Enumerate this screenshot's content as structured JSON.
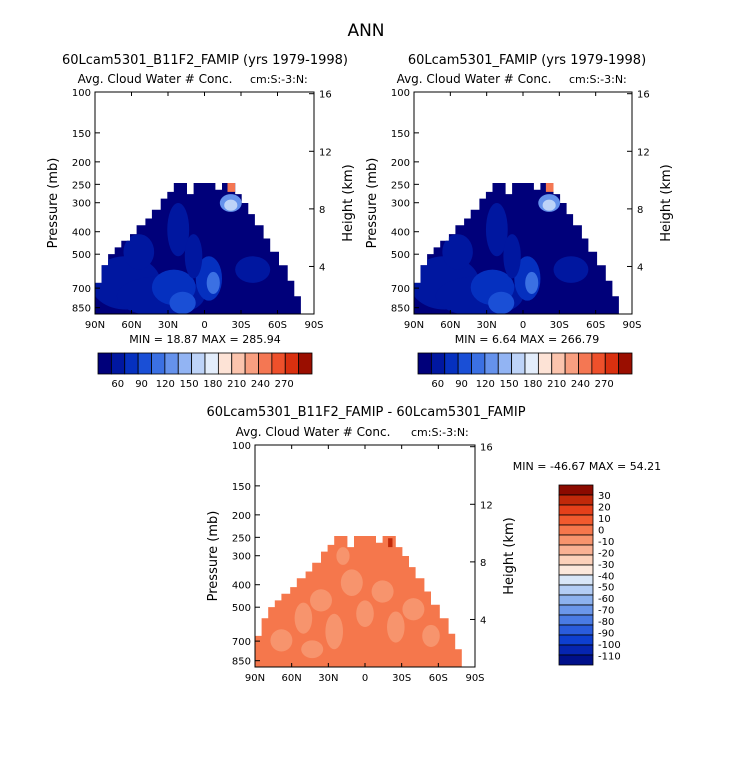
{
  "figure_title": "ANN",
  "chart_data": [
    {
      "type": "heatmap",
      "title": "60Lcam5301_B11F2_FAMIP (yrs 1979-1998)",
      "subtitle": "Avg. Cloud Water # Conc.",
      "corner_label": "cm:S:-3:N:",
      "ylabel": "Pressure (mb)",
      "ylabel_right": "Height (km)",
      "x_ticks": [
        "90N",
        "60N",
        "30N",
        "0",
        "30S",
        "60S",
        "90S"
      ],
      "y_ticks": [
        "100",
        "150",
        "200",
        "250",
        "300",
        "400",
        "500",
        "700",
        "850"
      ],
      "y_ticks_right": [
        "16",
        "12",
        "8",
        "4"
      ],
      "stats": "MIN = 18.87   MAX = 285.94",
      "colorbar": {
        "labels": [
          "60",
          "90",
          "120",
          "150",
          "180",
          "210",
          "240",
          "270"
        ],
        "colors": [
          "#00007a",
          "#0017a0",
          "#0530bf",
          "#1a4fd6",
          "#3b70e3",
          "#6592ec",
          "#92b4f3",
          "#bdd3f8",
          "#e3edfb",
          "#fde3d6",
          "#fbc4ad",
          "#f89f80",
          "#f47753",
          "#ee502b",
          "#d9300f",
          "#9a0e00"
        ]
      }
    },
    {
      "type": "heatmap",
      "title": "60Lcam5301_FAMIP (yrs 1979-1998)",
      "subtitle": "Avg. Cloud Water # Conc.",
      "corner_label": "cm:S:-3:N:",
      "ylabel": "Pressure (mb)",
      "ylabel_right": "Height (km)",
      "x_ticks": [
        "90N",
        "60N",
        "30N",
        "0",
        "30S",
        "60S",
        "90S"
      ],
      "y_ticks": [
        "100",
        "150",
        "200",
        "250",
        "300",
        "400",
        "500",
        "700",
        "850"
      ],
      "y_ticks_right": [
        "16",
        "12",
        "8",
        "4"
      ],
      "stats": "MIN = 6.64   MAX = 266.79",
      "colorbar": {
        "labels": [
          "60",
          "90",
          "120",
          "150",
          "180",
          "210",
          "240",
          "270"
        ],
        "colors": [
          "#00007a",
          "#0017a0",
          "#0530bf",
          "#1a4fd6",
          "#3b70e3",
          "#6592ec",
          "#92b4f3",
          "#bdd3f8",
          "#e3edfb",
          "#fde3d6",
          "#fbc4ad",
          "#f89f80",
          "#f47753",
          "#ee502b",
          "#d9300f",
          "#9a0e00"
        ]
      }
    },
    {
      "type": "heatmap",
      "title": "60Lcam5301_B11F2_FAMIP - 60Lcam5301_FAMIP",
      "subtitle": "Avg. Cloud Water # Conc.",
      "corner_label": "cm:S:-3:N:",
      "ylabel": "Pressure (mb)",
      "ylabel_right": "Height (km)",
      "x_ticks": [
        "90N",
        "60N",
        "30N",
        "0",
        "30S",
        "60S",
        "90S"
      ],
      "y_ticks": [
        "100",
        "150",
        "200",
        "250",
        "300",
        "400",
        "500",
        "700",
        "850"
      ],
      "y_ticks_right": [
        "16",
        "12",
        "8",
        "4"
      ],
      "stats": "MIN = -46.67   MAX = 54.21",
      "colorbar": {
        "labels": [
          "30",
          "20",
          "10",
          "0",
          "-10",
          "-20",
          "-30",
          "-40",
          "-50",
          "-60",
          "-70",
          "-80",
          "-90",
          "-100",
          "-110"
        ],
        "colors": [
          "#8b0a00",
          "#c1290a",
          "#e5401a",
          "#f15a2e",
          "#f5774c",
          "#f7946d",
          "#f9b193",
          "#fcd1ba",
          "#fce8dc",
          "#d8e6f8",
          "#b3cdf5",
          "#8db2ef",
          "#6b97ea",
          "#4a7be4",
          "#2a5cdc",
          "#0e3fd0",
          "#0625b0",
          "#00108a"
        ]
      }
    }
  ]
}
